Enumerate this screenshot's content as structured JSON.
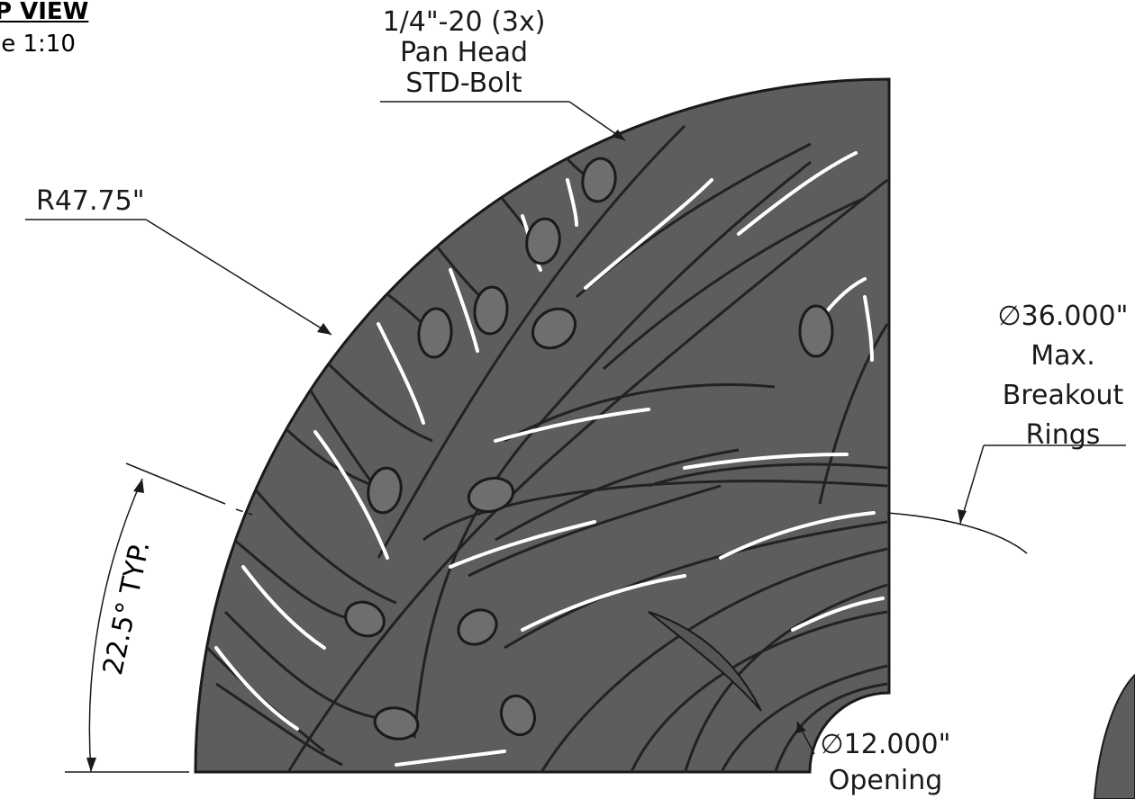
{
  "view": {
    "title": "P VIEW",
    "scale": "le 1:10"
  },
  "annotations": {
    "bolt": {
      "line1": "1/4\"-20 (3x)",
      "line2": "Pan Head",
      "line3": "STD-Bolt"
    },
    "radius": "R47.75\"",
    "angle": "22.5° TYP.",
    "rings": {
      "diameter": "36.000\"",
      "line2": "Max.",
      "line3": "Breakout",
      "line4": "Rings"
    },
    "opening": {
      "diameter": "12.000\"",
      "line2": "Opening"
    },
    "diameter_symbol": "∅"
  },
  "colors": {
    "plate": "#5d5d5d",
    "ink": "#1a1a1a",
    "slot": "#ffffff",
    "bulb": "#6e6e6e"
  }
}
